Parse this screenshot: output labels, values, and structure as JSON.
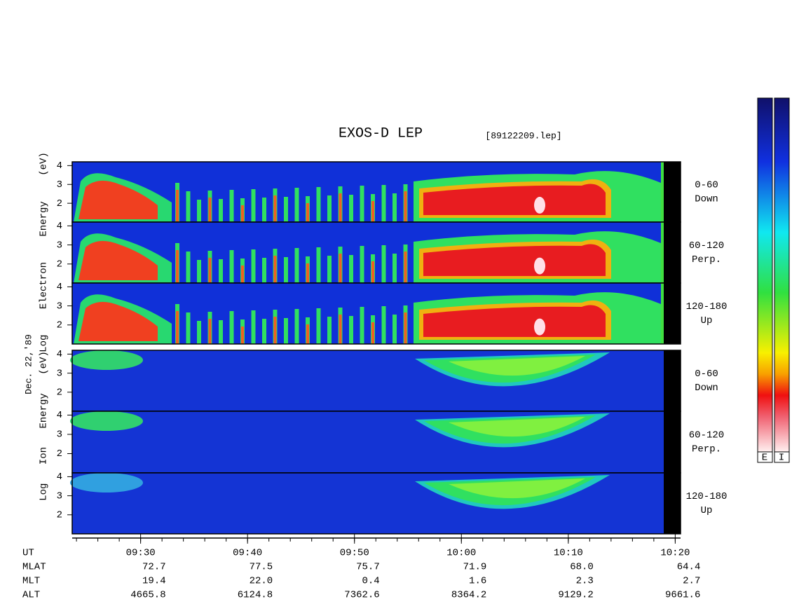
{
  "chart_data": {
    "type": "spectrogram",
    "title": "EXOS-D LEP",
    "file_label": "[89122209.lep]",
    "date_label": "Dec. 22,'89",
    "groups": [
      {
        "species": "electron",
        "axis_label": "Log Electron Energy (eV)",
        "panels": [
          {
            "range": "0-60",
            "direction": "Down"
          },
          {
            "range": "60-120",
            "direction": "Perp."
          },
          {
            "range": "120-180",
            "direction": "Up"
          }
        ]
      },
      {
        "species": "ion",
        "axis_label": "Log Ion Energy (eV)",
        "panels": [
          {
            "range": "0-60",
            "direction": "Down"
          },
          {
            "range": "60-120",
            "direction": "Perp."
          },
          {
            "range": "120-180",
            "direction": "Up"
          }
        ]
      }
    ],
    "ylim": [
      1,
      4.2
    ],
    "yticks": [
      2,
      3,
      4
    ],
    "xlim": [
      563.6,
      620.5
    ],
    "xticks": [
      {
        "value": 570,
        "label": "09:30"
      },
      {
        "value": 580,
        "label": "09:40"
      },
      {
        "value": 590,
        "label": "09:50"
      },
      {
        "value": 600,
        "label": "10:00"
      },
      {
        "value": 610,
        "label": "10:10"
      },
      {
        "value": 620,
        "label": "10:20"
      }
    ],
    "xlabel": "UT",
    "ephemeris": [
      {
        "name": "MLAT",
        "values": [
          "72.7",
          "77.5",
          "75.7",
          "71.9",
          "68.0",
          "64.4"
        ]
      },
      {
        "name": "MLT",
        "values": [
          "19.4",
          "22.0",
          "0.4",
          "1.6",
          "2.3",
          "2.7"
        ]
      },
      {
        "name": "ALT",
        "values": [
          "4665.8",
          "6124.8",
          "7362.6",
          "8364.2",
          "9129.2",
          "9661.6"
        ]
      }
    ],
    "colorbars": [
      "E",
      "I"
    ]
  }
}
